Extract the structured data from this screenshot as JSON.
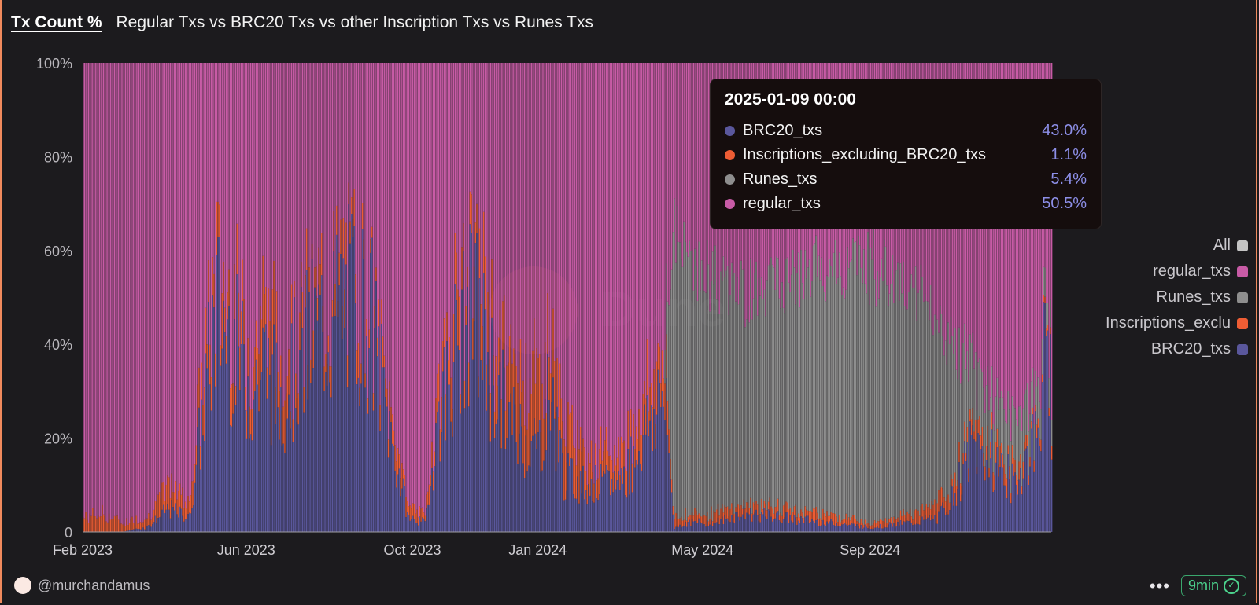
{
  "header": {
    "tab_title": "Tx Count %",
    "chart_title": "Regular Txs vs BRC20 Txs vs other Inscription Txs vs Runes Txs"
  },
  "legend": {
    "all_label": "All",
    "items": [
      {
        "label": "regular_txs",
        "color": "#c85ba6"
      },
      {
        "label": "Runes_txs",
        "color": "#8e8e8e"
      },
      {
        "label": "Inscriptions_exclu",
        "color": "#ee5d34"
      },
      {
        "label": "BRC20_txs",
        "color": "#5a579c"
      }
    ],
    "all_color": "#c4c4c4"
  },
  "tooltip": {
    "date": "2025-01-09 00:00",
    "rows": [
      {
        "name": "BRC20_txs",
        "value": "43.0%",
        "color": "#5a579c"
      },
      {
        "name": "Inscriptions_excluding_BRC20_txs",
        "value": "1.1%",
        "color": "#ee5d34"
      },
      {
        "name": "Runes_txs",
        "value": "5.4%",
        "color": "#8e8e8e"
      },
      {
        "name": "regular_txs",
        "value": "50.5%",
        "color": "#c85ba6"
      }
    ]
  },
  "watermark": "Dune",
  "footer": {
    "author": "@murchandamus",
    "freshness": "9min"
  },
  "chart_data": {
    "type": "bar",
    "stacked": true,
    "percent": true,
    "x_ticks": [
      "Feb 2023",
      "Jun 2023",
      "Oct 2023",
      "Jan 2024",
      "May 2024",
      "Sep 2024"
    ],
    "y_ticks": [
      "0",
      "20%",
      "40%",
      "60%",
      "80%",
      "100%"
    ],
    "ylim": [
      0,
      100
    ],
    "x_start": "2023-02-01",
    "x_end": "2025-01-12",
    "keyframes": [
      {
        "date": "2023-02-01",
        "brc20": 0,
        "insc": 3,
        "runes": 0
      },
      {
        "date": "2023-02-15",
        "brc20": 0,
        "insc": 4,
        "runes": 0
      },
      {
        "date": "2023-03-01",
        "brc20": 0,
        "insc": 2,
        "runes": 0
      },
      {
        "date": "2023-03-20",
        "brc20": 1,
        "insc": 2,
        "runes": 0
      },
      {
        "date": "2023-04-05",
        "brc20": 5,
        "insc": 5,
        "runes": 0
      },
      {
        "date": "2023-04-20",
        "brc20": 3,
        "insc": 4,
        "runes": 0
      },
      {
        "date": "2023-05-01",
        "brc20": 28,
        "insc": 8,
        "runes": 0
      },
      {
        "date": "2023-05-10",
        "brc20": 48,
        "insc": 8,
        "runes": 0
      },
      {
        "date": "2023-05-25",
        "brc20": 38,
        "insc": 8,
        "runes": 0
      },
      {
        "date": "2023-06-05",
        "brc20": 30,
        "insc": 8,
        "runes": 0
      },
      {
        "date": "2023-06-15",
        "brc20": 36,
        "insc": 14,
        "runes": 0
      },
      {
        "date": "2023-06-25",
        "brc20": 28,
        "insc": 8,
        "runes": 0
      },
      {
        "date": "2023-07-05",
        "brc20": 34,
        "insc": 7,
        "runes": 0
      },
      {
        "date": "2023-07-20",
        "brc20": 42,
        "insc": 6,
        "runes": 0
      },
      {
        "date": "2023-08-05",
        "brc20": 46,
        "insc": 6,
        "runes": 0
      },
      {
        "date": "2023-08-20",
        "brc20": 50,
        "insc": 6,
        "runes": 0
      },
      {
        "date": "2023-09-01",
        "brc20": 44,
        "insc": 4,
        "runes": 0
      },
      {
        "date": "2023-09-15",
        "brc20": 20,
        "insc": 5,
        "runes": 0
      },
      {
        "date": "2023-09-28",
        "brc20": 3,
        "insc": 3,
        "runes": 0
      },
      {
        "date": "2023-10-10",
        "brc20": 2,
        "insc": 2,
        "runes": 0
      },
      {
        "date": "2023-10-20",
        "brc20": 25,
        "insc": 6,
        "runes": 0
      },
      {
        "date": "2023-11-01",
        "brc20": 38,
        "insc": 8,
        "runes": 0
      },
      {
        "date": "2023-11-15",
        "brc20": 48,
        "insc": 8,
        "runes": 0
      },
      {
        "date": "2023-12-01",
        "brc20": 30,
        "insc": 10,
        "runes": 0
      },
      {
        "date": "2023-12-15",
        "brc20": 22,
        "insc": 12,
        "runes": 0
      },
      {
        "date": "2024-01-01",
        "brc20": 18,
        "insc": 15,
        "runes": 0
      },
      {
        "date": "2024-01-10",
        "brc20": 30,
        "insc": 10,
        "runes": 0
      },
      {
        "date": "2024-01-20",
        "brc20": 12,
        "insc": 10,
        "runes": 0
      },
      {
        "date": "2024-02-05",
        "brc20": 10,
        "insc": 8,
        "runes": 0
      },
      {
        "date": "2024-02-20",
        "brc20": 10,
        "insc": 6,
        "runes": 0
      },
      {
        "date": "2024-03-05",
        "brc20": 12,
        "insc": 6,
        "runes": 0
      },
      {
        "date": "2024-03-20",
        "brc20": 22,
        "insc": 8,
        "runes": 0
      },
      {
        "date": "2024-04-02",
        "brc20": 30,
        "insc": 8,
        "runes": 0
      },
      {
        "date": "2024-04-10",
        "brc20": 1,
        "insc": 2,
        "runes": 60
      },
      {
        "date": "2024-04-20",
        "brc20": 2,
        "insc": 2,
        "runes": 55
      },
      {
        "date": "2024-05-10",
        "brc20": 2,
        "insc": 2,
        "runes": 50
      },
      {
        "date": "2024-06-01",
        "brc20": 4,
        "insc": 2,
        "runes": 45
      },
      {
        "date": "2024-07-01",
        "brc20": 3,
        "insc": 2,
        "runes": 48
      },
      {
        "date": "2024-08-01",
        "brc20": 2,
        "insc": 2,
        "runes": 52
      },
      {
        "date": "2024-09-01",
        "brc20": 1,
        "insc": 1,
        "runes": 55
      },
      {
        "date": "2024-10-01",
        "brc20": 2,
        "insc": 2,
        "runes": 48
      },
      {
        "date": "2024-10-20",
        "brc20": 3,
        "insc": 3,
        "runes": 40
      },
      {
        "date": "2024-11-01",
        "brc20": 8,
        "insc": 3,
        "runes": 28
      },
      {
        "date": "2024-11-15",
        "brc20": 18,
        "insc": 3,
        "runes": 15
      },
      {
        "date": "2024-12-01",
        "brc20": 15,
        "insc": 3,
        "runes": 10
      },
      {
        "date": "2024-12-15",
        "brc20": 10,
        "insc": 3,
        "runes": 12
      },
      {
        "date": "2025-01-01",
        "brc20": 20,
        "insc": 2,
        "runes": 8
      },
      {
        "date": "2025-01-09",
        "brc20": 43.0,
        "insc": 1.1,
        "runes": 5.4
      },
      {
        "date": "2025-01-12",
        "brc20": 28,
        "insc": 2,
        "runes": 6
      }
    ],
    "series": [
      {
        "name": "BRC20_txs",
        "color": "#5a579c"
      },
      {
        "name": "Inscriptions_excluding_BRC20_txs",
        "color": "#ee5d34"
      },
      {
        "name": "Runes_txs",
        "color": "#8e8e8e"
      },
      {
        "name": "regular_txs",
        "color": "#c85ba6"
      }
    ]
  }
}
